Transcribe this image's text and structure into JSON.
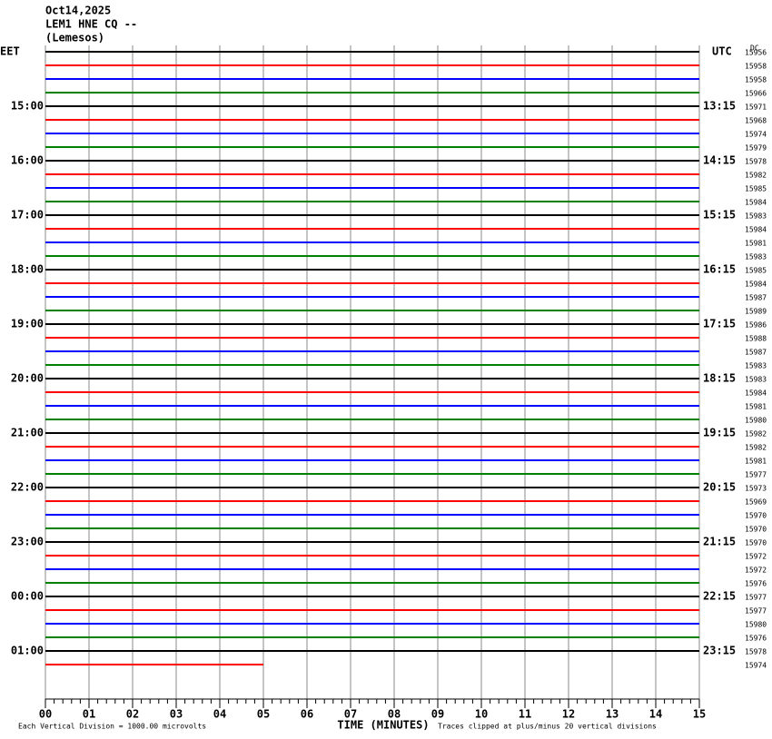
{
  "header": {
    "date": "Oct14,2025",
    "station": "LEM1 HNE CQ --",
    "location": "(Lemesos)"
  },
  "left_axis": {
    "title": "EET",
    "labels": [
      "15:00",
      "16:00",
      "17:00",
      "18:00",
      "19:00",
      "20:00",
      "21:00",
      "22:00",
      "23:00",
      "00:00",
      "01:00"
    ]
  },
  "right_axis": {
    "title": "UTC",
    "labels": [
      "13:15",
      "14:15",
      "15:15",
      "16:15",
      "17:15",
      "18:15",
      "19:15",
      "20:15",
      "21:15",
      "22:15",
      "23:15"
    ]
  },
  "dc_label": "DC",
  "dc_values": [
    15956,
    15958,
    15958,
    15966,
    15971,
    15968,
    15974,
    15979,
    15978,
    15982,
    15985,
    15984,
    15983,
    15984,
    15981,
    15983,
    15985,
    15984,
    15987,
    15989,
    15986,
    15988,
    15987,
    15983,
    15983,
    15984,
    15981,
    15980,
    15982,
    15982,
    15981,
    15977,
    15973,
    15969,
    15970,
    15970,
    15970,
    15972,
    15972,
    15976,
    15977,
    15977,
    15980,
    15976,
    15978,
    15974
  ],
  "x_axis": {
    "title": "TIME (MINUTES)",
    "ticks": [
      "00",
      "01",
      "02",
      "03",
      "04",
      "05",
      "06",
      "07",
      "08",
      "09",
      "10",
      "11",
      "12",
      "13",
      "14",
      "15"
    ]
  },
  "notes": {
    "left": "Each Vertical Division = 1000.00 microvolts",
    "right": "Traces clipped at plus/minus 20 vertical divisions"
  },
  "trace_colors": [
    "#000000",
    "#ff0000",
    "#0000ff",
    "#008000"
  ],
  "last_trace_end_minute": 5
}
